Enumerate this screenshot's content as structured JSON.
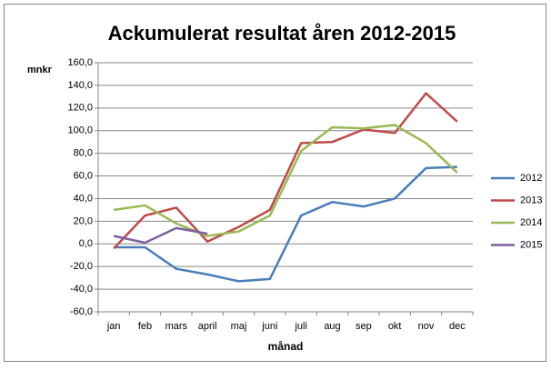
{
  "chart_data": {
    "type": "line",
    "title": "Ackumulerat resultat åren 2012-2015",
    "ylabel": "mnkr",
    "xlabel": "månad",
    "categories": [
      "jan",
      "feb",
      "mars",
      "april",
      "maj",
      "juni",
      "juli",
      "aug",
      "sep",
      "okt",
      "nov",
      "dec"
    ],
    "series": [
      {
        "name": "2012",
        "color": "#4a7ebb",
        "values": [
          -3,
          -3,
          -22,
          -27,
          -33,
          -31,
          25,
          37,
          33,
          40,
          67,
          68
        ]
      },
      {
        "name": "2013",
        "color": "#be4b48",
        "values": [
          -4,
          25,
          32,
          2,
          15,
          30,
          89,
          90,
          101,
          98,
          133,
          108
        ]
      },
      {
        "name": "2014",
        "color": "#98b954",
        "values": [
          30,
          34,
          18,
          7,
          11,
          25,
          82,
          103,
          102,
          105,
          89,
          63
        ]
      },
      {
        "name": "2015",
        "color": "#7d60a0",
        "values": [
          7,
          1,
          14,
          9,
          null,
          null,
          null,
          null,
          null,
          null,
          null,
          null
        ]
      }
    ],
    "ylim": [
      -60,
      160
    ],
    "yticks": [
      {
        "value": -60,
        "label": "-60,0"
      },
      {
        "value": -40,
        "label": "-40,0"
      },
      {
        "value": -20,
        "label": "-20,0"
      },
      {
        "value": 0,
        "label": "0,0"
      },
      {
        "value": 20,
        "label": "20,0"
      },
      {
        "value": 40,
        "label": "40,0"
      },
      {
        "value": 60,
        "label": "60,0"
      },
      {
        "value": 80,
        "label": "80,0"
      },
      {
        "value": 100,
        "label": "100,0"
      },
      {
        "value": 120,
        "label": "120,0"
      },
      {
        "value": 140,
        "label": "140,0"
      },
      {
        "value": 160,
        "label": "160,0"
      }
    ],
    "grid": true,
    "legend": "right"
  }
}
